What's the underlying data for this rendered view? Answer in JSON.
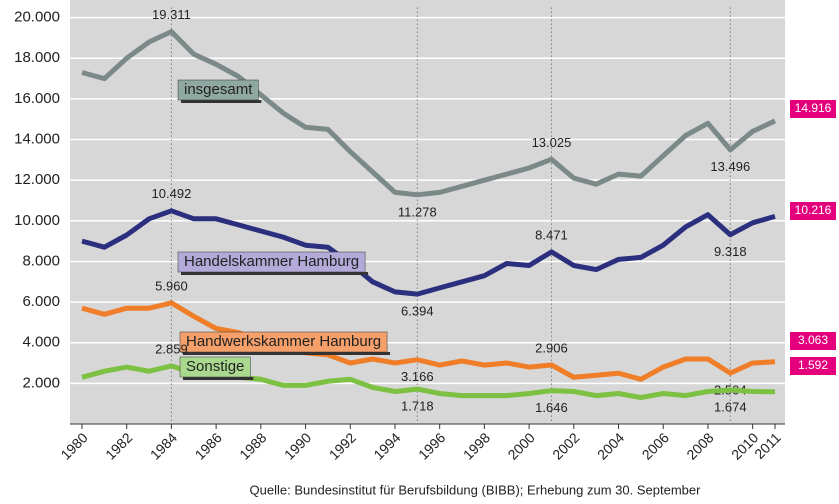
{
  "chart_data": {
    "type": "line",
    "source": "Quelle: Bundesinstitut für Berufsbildung (BIBB); Erhebung zum 30. September",
    "x": [
      1980,
      1981,
      1982,
      1983,
      1984,
      1985,
      1986,
      1987,
      1988,
      1989,
      1990,
      1991,
      1992,
      1993,
      1994,
      1995,
      1996,
      1997,
      1998,
      1999,
      2000,
      2001,
      2002,
      2003,
      2004,
      2005,
      2006,
      2007,
      2008,
      2009,
      2010,
      2011
    ],
    "xlim": [
      1980,
      2011
    ],
    "xticks": [
      1980,
      1982,
      1984,
      1986,
      1988,
      1990,
      1992,
      1994,
      1996,
      1998,
      2000,
      2002,
      2004,
      2006,
      2008,
      2010,
      2011
    ],
    "ylim": [
      0,
      20000
    ],
    "yticks": [
      {
        "value": 2000,
        "label": "2.000"
      },
      {
        "value": 4000,
        "label": "4.000"
      },
      {
        "value": 6000,
        "label": "6.000"
      },
      {
        "value": 8000,
        "label": "8.000"
      },
      {
        "value": 10000,
        "label": "10.000"
      },
      {
        "value": 12000,
        "label": "12.000"
      },
      {
        "value": 14000,
        "label": "14.000"
      },
      {
        "value": 16000,
        "label": "16.000"
      },
      {
        "value": 18000,
        "label": "18.000"
      },
      {
        "value": 20000,
        "label": "20.000"
      }
    ],
    "grid": true,
    "series": [
      {
        "name": "insgesamt",
        "color": "#7b8a88",
        "label_bg": "#8fa8a2",
        "values": [
          17300,
          17000,
          18000,
          18800,
          19311,
          18200,
          17700,
          17100,
          16200,
          15300,
          14600,
          14500,
          13400,
          12400,
          11400,
          11278,
          11400,
          11700,
          12000,
          12300,
          12600,
          13025,
          12100,
          11800,
          12300,
          12200,
          13200,
          14200,
          14800,
          13496,
          14400,
          14916
        ],
        "value_labels": [
          null,
          null,
          null,
          null,
          "19.311",
          null,
          null,
          null,
          null,
          null,
          null,
          null,
          null,
          null,
          null,
          "11.278",
          null,
          null,
          null,
          null,
          null,
          "13.025",
          null,
          null,
          null,
          null,
          null,
          null,
          null,
          "13.496",
          null,
          "14.916"
        ]
      },
      {
        "name": "Handelskammer Hamburg",
        "color": "#2b2f7e",
        "label_bg": "#b3aad9",
        "values": [
          9000,
          8700,
          9300,
          10100,
          10492,
          10100,
          10100,
          9800,
          9500,
          9200,
          8800,
          8700,
          7900,
          7000,
          6500,
          6394,
          6700,
          7000,
          7300,
          7900,
          7800,
          8471,
          7800,
          7600,
          8100,
          8200,
          8800,
          9700,
          10300,
          9318,
          9900,
          10216
        ],
        "value_labels": [
          null,
          null,
          null,
          null,
          "10.492",
          null,
          null,
          null,
          null,
          null,
          null,
          null,
          null,
          null,
          null,
          "6.394",
          null,
          null,
          null,
          null,
          null,
          "8.471",
          null,
          null,
          null,
          null,
          null,
          null,
          null,
          "9.318",
          null,
          "10.216"
        ]
      },
      {
        "name": "Handwerkskammer Hamburg",
        "color": "#f07d28",
        "label_bg": "#f5a06a",
        "values": [
          5700,
          5400,
          5700,
          5700,
          5960,
          5300,
          4700,
          4500,
          4100,
          3800,
          3500,
          3400,
          3000,
          3200,
          3000,
          3166,
          2900,
          3100,
          2900,
          3000,
          2800,
          2906,
          2300,
          2400,
          2500,
          2200,
          2800,
          3200,
          3200,
          2504,
          3000,
          3063
        ],
        "value_labels": [
          null,
          null,
          null,
          null,
          "5.960",
          null,
          null,
          null,
          null,
          null,
          null,
          null,
          null,
          null,
          null,
          "3.166",
          null,
          null,
          null,
          null,
          null,
          "2.906",
          null,
          null,
          null,
          null,
          null,
          null,
          null,
          "2.504",
          null,
          "3.063"
        ]
      },
      {
        "name": "Sonstige",
        "color": "#7cc142",
        "label_bg": "#a9d98e",
        "values": [
          2300,
          2600,
          2800,
          2600,
          2859,
          2500,
          2500,
          2300,
          2200,
          1900,
          1900,
          2100,
          2200,
          1800,
          1600,
          1718,
          1500,
          1400,
          1400,
          1400,
          1500,
          1646,
          1600,
          1400,
          1500,
          1300,
          1500,
          1400,
          1600,
          1674,
          1600,
          1592
        ],
        "value_labels": [
          null,
          null,
          null,
          null,
          "2.859",
          null,
          null,
          null,
          null,
          null,
          null,
          null,
          null,
          null,
          null,
          "1.718",
          null,
          null,
          null,
          null,
          null,
          "1.646",
          null,
          null,
          null,
          null,
          null,
          null,
          null,
          "1.674",
          null,
          "1.592"
        ]
      }
    ]
  }
}
